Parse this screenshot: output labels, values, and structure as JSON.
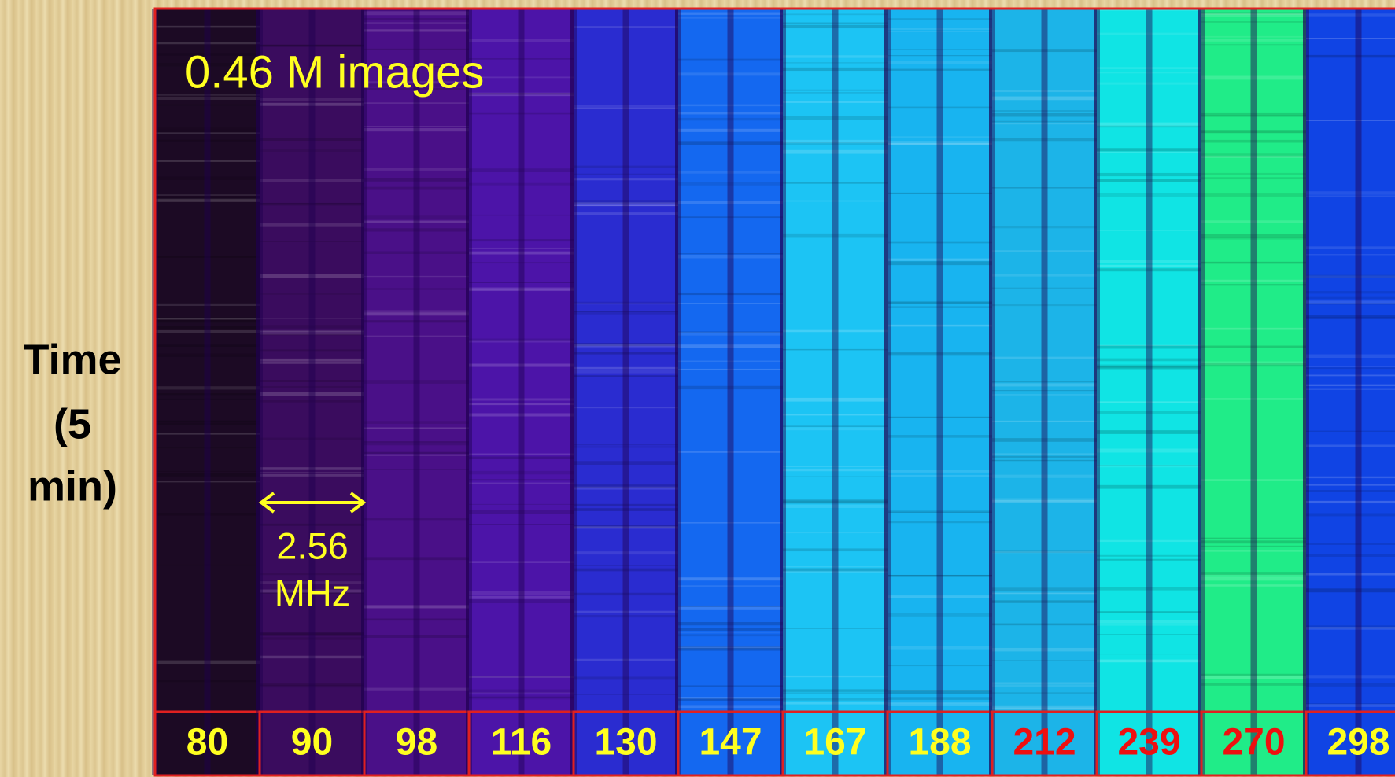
{
  "annotation": "0.46 M images",
  "axis_label": [
    "Time",
    "(5",
    "min)"
  ],
  "bandwidth": {
    "value": "2.56",
    "unit": "MHz"
  },
  "channels": [
    {
      "label": "80",
      "highlight": false,
      "color": "#1c0a24"
    },
    {
      "label": "90",
      "highlight": false,
      "color": "#3a0c5e"
    },
    {
      "label": "98",
      "highlight": false,
      "color": "#4a1088"
    },
    {
      "label": "116",
      "highlight": false,
      "color": "#4c14a8"
    },
    {
      "label": "130",
      "highlight": false,
      "color": "#2a2cd0"
    },
    {
      "label": "147",
      "highlight": false,
      "color": "#1468f0"
    },
    {
      "label": "167",
      "highlight": false,
      "color": "#1cc4f4"
    },
    {
      "label": "188",
      "highlight": false,
      "color": "#18b4f0"
    },
    {
      "label": "212",
      "highlight": true,
      "color": "#1cb4e8"
    },
    {
      "label": "239",
      "highlight": true,
      "color": "#10e4e4"
    },
    {
      "label": "270",
      "highlight": true,
      "color": "#20ec88"
    },
    {
      "label": "298",
      "highlight": false,
      "color": "#1044e4"
    }
  ]
}
